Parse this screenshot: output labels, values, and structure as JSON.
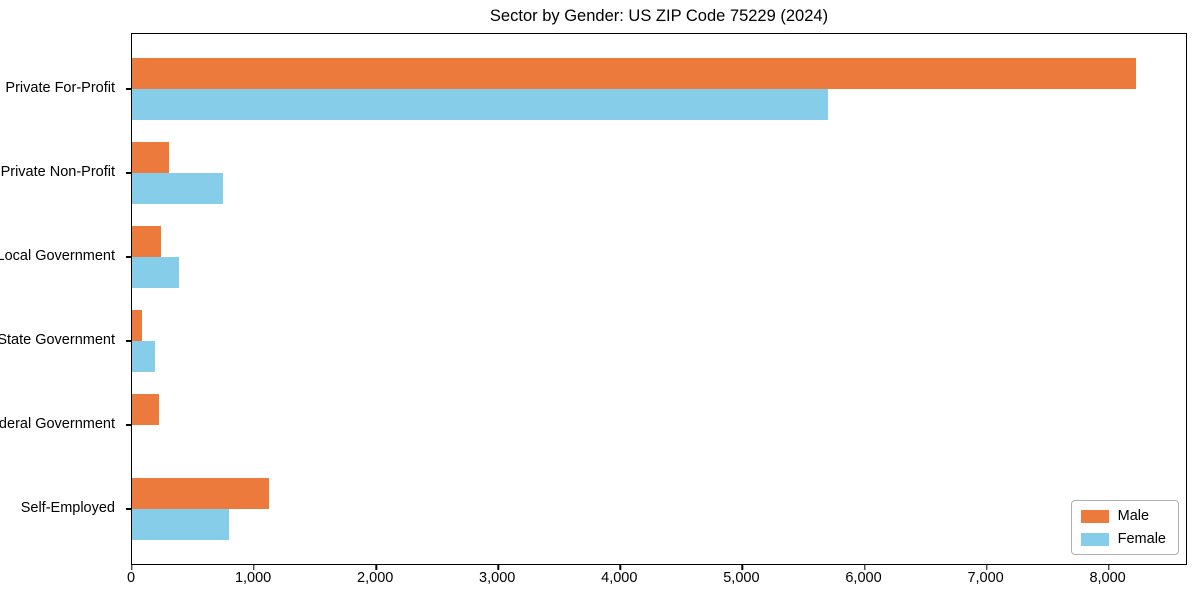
{
  "title": "Sector by Gender: US ZIP Code 75229 (2024)",
  "chart_data": {
    "type": "bar",
    "orientation": "horizontal",
    "title": "Sector by Gender: US ZIP Code 75229 (2024)",
    "xlabel": "",
    "ylabel": "",
    "categories": [
      "Private For-Profit",
      "Private Non-Profit",
      "Local Government",
      "State Government",
      "Federal Government",
      "Self-Employed"
    ],
    "series": [
      {
        "name": "Male",
        "color": "#EB7A3C",
        "values": [
          8220,
          300,
          240,
          85,
          220,
          1120
        ]
      },
      {
        "name": "Female",
        "color": "#85CDE8",
        "values": [
          5700,
          745,
          385,
          190,
          0,
          795
        ]
      }
    ],
    "xlim": [
      0,
      8650
    ],
    "x_ticks": [
      0,
      1000,
      2000,
      3000,
      4000,
      5000,
      6000,
      7000,
      8000
    ],
    "x_tick_labels": [
      "0",
      "1,000",
      "2,000",
      "3,000",
      "4,000",
      "5,000",
      "6,000",
      "7,000",
      "8,000"
    ],
    "grid": false,
    "legend_position": "lower right",
    "background_color": "#ffffff",
    "spine_color": "#000000"
  }
}
